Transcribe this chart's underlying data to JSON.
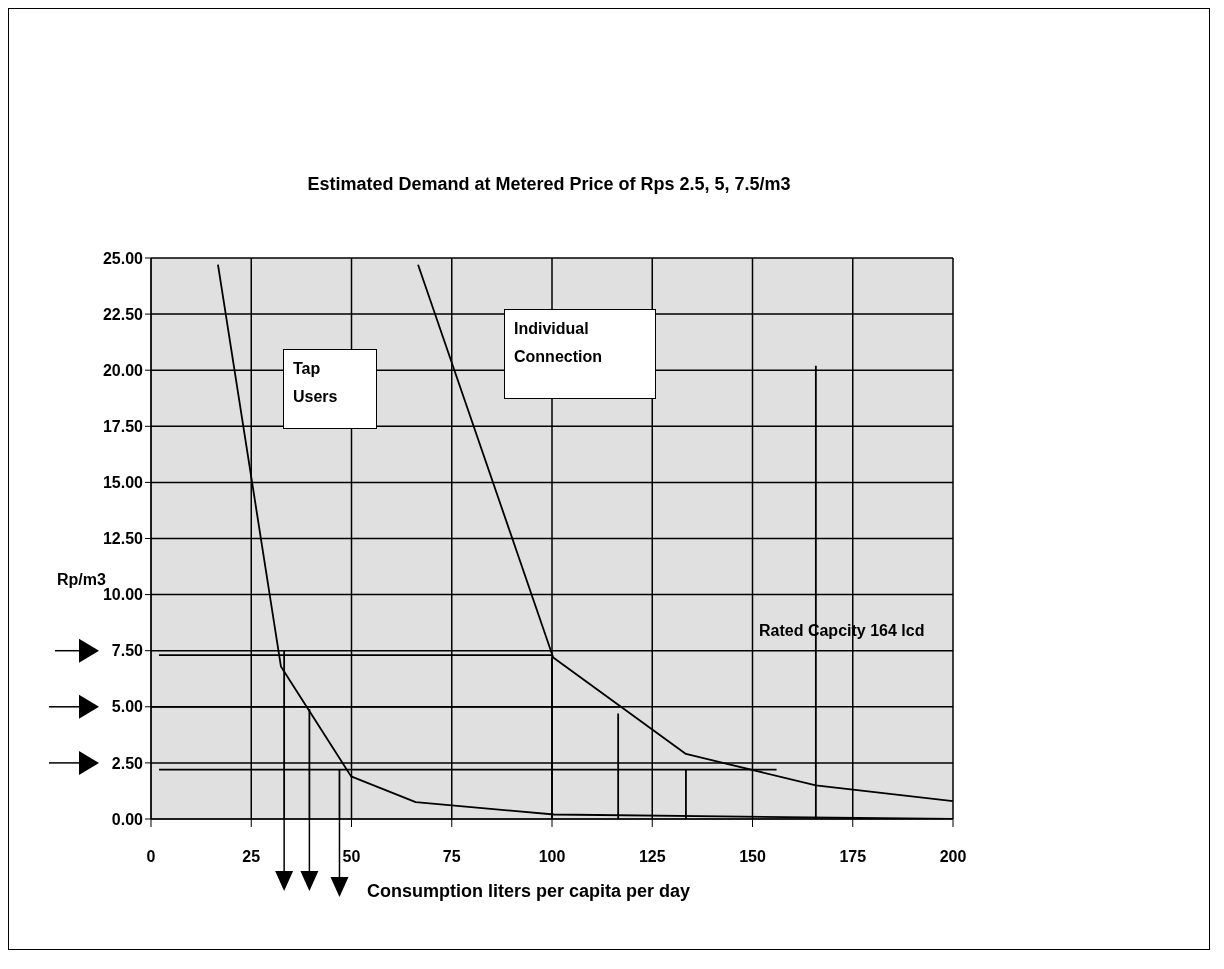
{
  "chart_data": {
    "type": "line",
    "title": "Estimated Demand at Metered Price of Rps 2.5, 5, 7.5/m3",
    "xlabel": "Consumption liters per capita per day",
    "ylabel": "Rp/m3",
    "annotations": [
      "Tap Users",
      "Individual Connection",
      "Rated  Capcity 164 lcd"
    ],
    "xlim": [
      0,
      200
    ],
    "xticks": [
      0,
      25,
      50,
      75,
      100,
      125,
      150,
      175,
      200
    ],
    "ylim": [
      0,
      25
    ],
    "yticks": [
      {
        "value": 0,
        "label": "0.00"
      },
      {
        "value": 2.5,
        "label": "2.50"
      },
      {
        "value": 5,
        "label": "5.00"
      },
      {
        "value": 7.5,
        "label": "7.50"
      },
      {
        "value": 10,
        "label": "10.00"
      },
      {
        "value": 12.5,
        "label": "12.50"
      },
      {
        "value": 15,
        "label": "15.00"
      },
      {
        "value": 17.5,
        "label": "17.50"
      },
      {
        "value": 20,
        "label": "20.00"
      },
      {
        "value": 22.5,
        "label": "22.50"
      },
      {
        "value": 25,
        "label": "25.00"
      }
    ],
    "grid": true,
    "marker": "none",
    "line_style": "solid",
    "series": [
      {
        "color": "#000000",
        "x": [
          16.7,
          32.4,
          49.9,
          66,
          100.5,
          200
        ],
        "values": [
          24.7,
          6.8,
          1.9,
          0.75,
          0.2,
          0
        ]
      },
      {
        "color": "#000000",
        "x": [
          66.6,
          100.3,
          133.4,
          165.8,
          200
        ],
        "values": [
          24.7,
          7.2,
          2.9,
          1.5,
          0.8
        ]
      },
      {
        "color": "#000000",
        "x": [
          2,
          100
        ],
        "values": [
          7.3,
          7.3
        ]
      },
      {
        "color": "#000000",
        "x": [
          0,
          117
        ],
        "values": [
          5,
          5
        ]
      },
      {
        "color": "#000000",
        "x": [
          2,
          156
        ],
        "values": [
          2.2,
          2.2
        ]
      },
      {
        "color": "#000000",
        "x": [
          33.2,
          33.2
        ],
        "values": [
          0,
          7.5
        ]
      },
      {
        "color": "#000000",
        "x": [
          39.5,
          39.5
        ],
        "values": [
          0,
          4.9
        ]
      },
      {
        "color": "#000000",
        "x": [
          47,
          47
        ],
        "values": [
          0,
          2.2
        ]
      },
      {
        "color": "#000000",
        "x": [
          100,
          100
        ],
        "values": [
          0,
          7.2
        ]
      },
      {
        "color": "#000000",
        "x": [
          116.5,
          116.5
        ],
        "values": [
          0,
          4.7
        ]
      },
      {
        "color": "#000000",
        "x": [
          133.4,
          133.4
        ],
        "values": [
          0,
          2.2
        ]
      },
      {
        "color": "#000000",
        "x": [
          165.8,
          165.8
        ],
        "values": [
          0,
          20.2
        ]
      }
    ]
  }
}
